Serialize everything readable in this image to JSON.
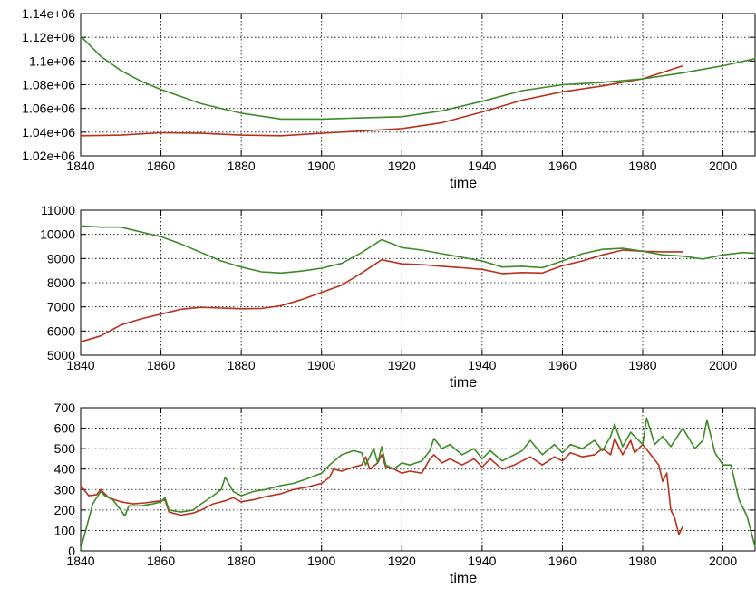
{
  "chart_data": [
    {
      "type": "line",
      "title": "",
      "xlabel": "time",
      "ylabel": "",
      "xlim": [
        1840,
        2008
      ],
      "ylim": [
        1020000,
        1140000
      ],
      "x_ticks": [
        1840,
        1860,
        1880,
        1900,
        1920,
        1940,
        1960,
        1980,
        2000
      ],
      "x_tick_labels": [
        "1840",
        "1860",
        "1880",
        "1900",
        "1920",
        "1940",
        "1960",
        "1980",
        "2000"
      ],
      "y_ticks": [
        1020000,
        1040000,
        1060000,
        1080000,
        1100000,
        1120000,
        1140000
      ],
      "y_tick_labels": [
        "1.02e+06",
        "1.04e+06",
        "1.06e+06",
        "1.08e+06",
        "1.1e+06",
        "1.12e+06",
        "1.14e+06"
      ],
      "grid": true,
      "series": [
        {
          "color": "#b8311c",
          "x": [
            1840,
            1850,
            1860,
            1870,
            1880,
            1890,
            1900,
            1910,
            1920,
            1930,
            1940,
            1950,
            1960,
            1970,
            1980,
            1990
          ],
          "y": [
            1037000,
            1037500,
            1039500,
            1039000,
            1037500,
            1037000,
            1039000,
            1041000,
            1043000,
            1048000,
            1057000,
            1067000,
            1074000,
            1079000,
            1085000,
            1096000
          ]
        },
        {
          "color": "#3d8a28",
          "x": [
            1840,
            1845,
            1850,
            1855,
            1860,
            1870,
            1880,
            1890,
            1900,
            1910,
            1920,
            1930,
            1940,
            1950,
            1960,
            1970,
            1980,
            1990,
            2000,
            2008
          ],
          "y": [
            1121000,
            1104000,
            1092000,
            1083000,
            1076000,
            1064000,
            1056000,
            1051000,
            1051000,
            1052000,
            1053000,
            1058000,
            1066000,
            1075000,
            1080000,
            1082000,
            1085000,
            1090000,
            1096000,
            1102000
          ]
        }
      ]
    },
    {
      "type": "line",
      "title": "",
      "xlabel": "time",
      "ylabel": "",
      "xlim": [
        1840,
        2008
      ],
      "ylim": [
        5000,
        11000
      ],
      "x_ticks": [
        1840,
        1860,
        1880,
        1900,
        1920,
        1940,
        1960,
        1980,
        2000
      ],
      "x_tick_labels": [
        "1840",
        "1860",
        "1880",
        "1900",
        "1920",
        "1940",
        "1960",
        "1980",
        "2000"
      ],
      "y_ticks": [
        5000,
        6000,
        7000,
        8000,
        9000,
        10000,
        11000
      ],
      "y_tick_labels": [
        "5000",
        "6000",
        "7000",
        "8000",
        "9000",
        "10000",
        "11000"
      ],
      "grid": true,
      "series": [
        {
          "color": "#b8311c",
          "x": [
            1840,
            1845,
            1850,
            1855,
            1860,
            1865,
            1870,
            1875,
            1880,
            1885,
            1890,
            1895,
            1900,
            1905,
            1910,
            1915,
            1920,
            1925,
            1930,
            1935,
            1940,
            1945,
            1950,
            1955,
            1960,
            1965,
            1970,
            1975,
            1980,
            1985,
            1990
          ],
          "y": [
            5550,
            5800,
            6250,
            6500,
            6700,
            6900,
            6980,
            6950,
            6920,
            6930,
            7050,
            7300,
            7600,
            7900,
            8400,
            8950,
            8780,
            8750,
            8680,
            8620,
            8550,
            8380,
            8420,
            8400,
            8700,
            8900,
            9150,
            9350,
            9300,
            9280,
            9280
          ]
        },
        {
          "color": "#3d8a28",
          "x": [
            1840,
            1845,
            1850,
            1855,
            1860,
            1865,
            1870,
            1875,
            1880,
            1885,
            1890,
            1895,
            1900,
            1905,
            1910,
            1915,
            1920,
            1925,
            1930,
            1935,
            1940,
            1945,
            1950,
            1955,
            1960,
            1965,
            1970,
            1975,
            1980,
            1985,
            1990,
            1995,
            2000,
            2005,
            2008
          ],
          "y": [
            10350,
            10300,
            10300,
            10100,
            9900,
            9600,
            9250,
            8900,
            8650,
            8450,
            8400,
            8480,
            8600,
            8800,
            9250,
            9780,
            9450,
            9350,
            9200,
            9050,
            8900,
            8650,
            8680,
            8620,
            8900,
            9200,
            9380,
            9420,
            9300,
            9150,
            9100,
            8980,
            9150,
            9250,
            9220
          ]
        }
      ]
    },
    {
      "type": "line",
      "title": "",
      "xlabel": "time",
      "ylabel": "",
      "xlim": [
        1840,
        2008
      ],
      "ylim": [
        0,
        700
      ],
      "x_ticks": [
        1840,
        1860,
        1880,
        1900,
        1920,
        1940,
        1960,
        1980,
        2000
      ],
      "x_tick_labels": [
        "1840",
        "1860",
        "1880",
        "1900",
        "1920",
        "1940",
        "1960",
        "1980",
        "2000"
      ],
      "y_ticks": [
        0,
        100,
        200,
        300,
        400,
        500,
        600,
        700
      ],
      "y_tick_labels": [
        "0",
        "100",
        "200",
        "300",
        "400",
        "500",
        "600",
        "700"
      ],
      "grid": true,
      "series": [
        {
          "color": "#b8311c",
          "x": [
            1840,
            1842,
            1844,
            1845,
            1847,
            1850,
            1853,
            1856,
            1858,
            1860,
            1861,
            1862,
            1865,
            1868,
            1870,
            1873,
            1876,
            1878,
            1880,
            1883,
            1886,
            1890,
            1893,
            1896,
            1900,
            1902,
            1903,
            1905,
            1908,
            1910,
            1911,
            1912,
            1914,
            1915,
            1916,
            1918,
            1920,
            1922,
            1925,
            1927,
            1928,
            1930,
            1932,
            1935,
            1938,
            1940,
            1942,
            1945,
            1948,
            1950,
            1952,
            1955,
            1958,
            1960,
            1962,
            1965,
            1968,
            1970,
            1972,
            1973,
            1975,
            1977,
            1978,
            1980,
            1982,
            1984,
            1985,
            1986,
            1987,
            1988,
            1989,
            1990
          ],
          "y": [
            320,
            270,
            275,
            300,
            260,
            240,
            230,
            235,
            240,
            245,
            250,
            190,
            175,
            185,
            200,
            230,
            245,
            260,
            240,
            250,
            265,
            280,
            300,
            310,
            330,
            360,
            400,
            390,
            410,
            420,
            460,
            400,
            430,
            470,
            410,
            400,
            380,
            390,
            380,
            450,
            470,
            430,
            450,
            420,
            450,
            410,
            450,
            400,
            420,
            440,
            460,
            420,
            460,
            440,
            480,
            460,
            470,
            500,
            470,
            550,
            470,
            540,
            480,
            520,
            470,
            420,
            340,
            380,
            200,
            160,
            80,
            120
          ]
        },
        {
          "color": "#3d8a28",
          "x": [
            1840,
            1841,
            1843,
            1845,
            1846,
            1848,
            1850,
            1851,
            1852,
            1855,
            1858,
            1860,
            1861,
            1862,
            1865,
            1868,
            1870,
            1873,
            1875,
            1876,
            1878,
            1880,
            1883,
            1886,
            1890,
            1893,
            1896,
            1900,
            1902,
            1905,
            1908,
            1910,
            1911,
            1913,
            1914,
            1915,
            1916,
            1918,
            1920,
            1922,
            1925,
            1927,
            1928,
            1930,
            1932,
            1935,
            1938,
            1940,
            1942,
            1945,
            1948,
            1950,
            1952,
            1955,
            1958,
            1960,
            1962,
            1965,
            1968,
            1970,
            1972,
            1973,
            1975,
            1977,
            1980,
            1981,
            1983,
            1985,
            1987,
            1990,
            1993,
            1995,
            1996,
            1998,
            2000,
            2002,
            2004,
            2006,
            2008
          ],
          "y": [
            10,
            80,
            230,
            290,
            270,
            250,
            200,
            170,
            220,
            220,
            230,
            240,
            260,
            200,
            190,
            200,
            230,
            270,
            300,
            360,
            290,
            270,
            290,
            300,
            320,
            330,
            350,
            380,
            420,
            470,
            490,
            480,
            420,
            500,
            430,
            510,
            420,
            400,
            430,
            420,
            440,
            490,
            550,
            500,
            520,
            470,
            500,
            450,
            490,
            440,
            470,
            490,
            540,
            470,
            520,
            480,
            520,
            500,
            540,
            490,
            560,
            620,
            510,
            580,
            520,
            650,
            520,
            560,
            510,
            600,
            500,
            540,
            640,
            480,
            420,
            420,
            250,
            170,
            20
          ]
        }
      ]
    }
  ]
}
